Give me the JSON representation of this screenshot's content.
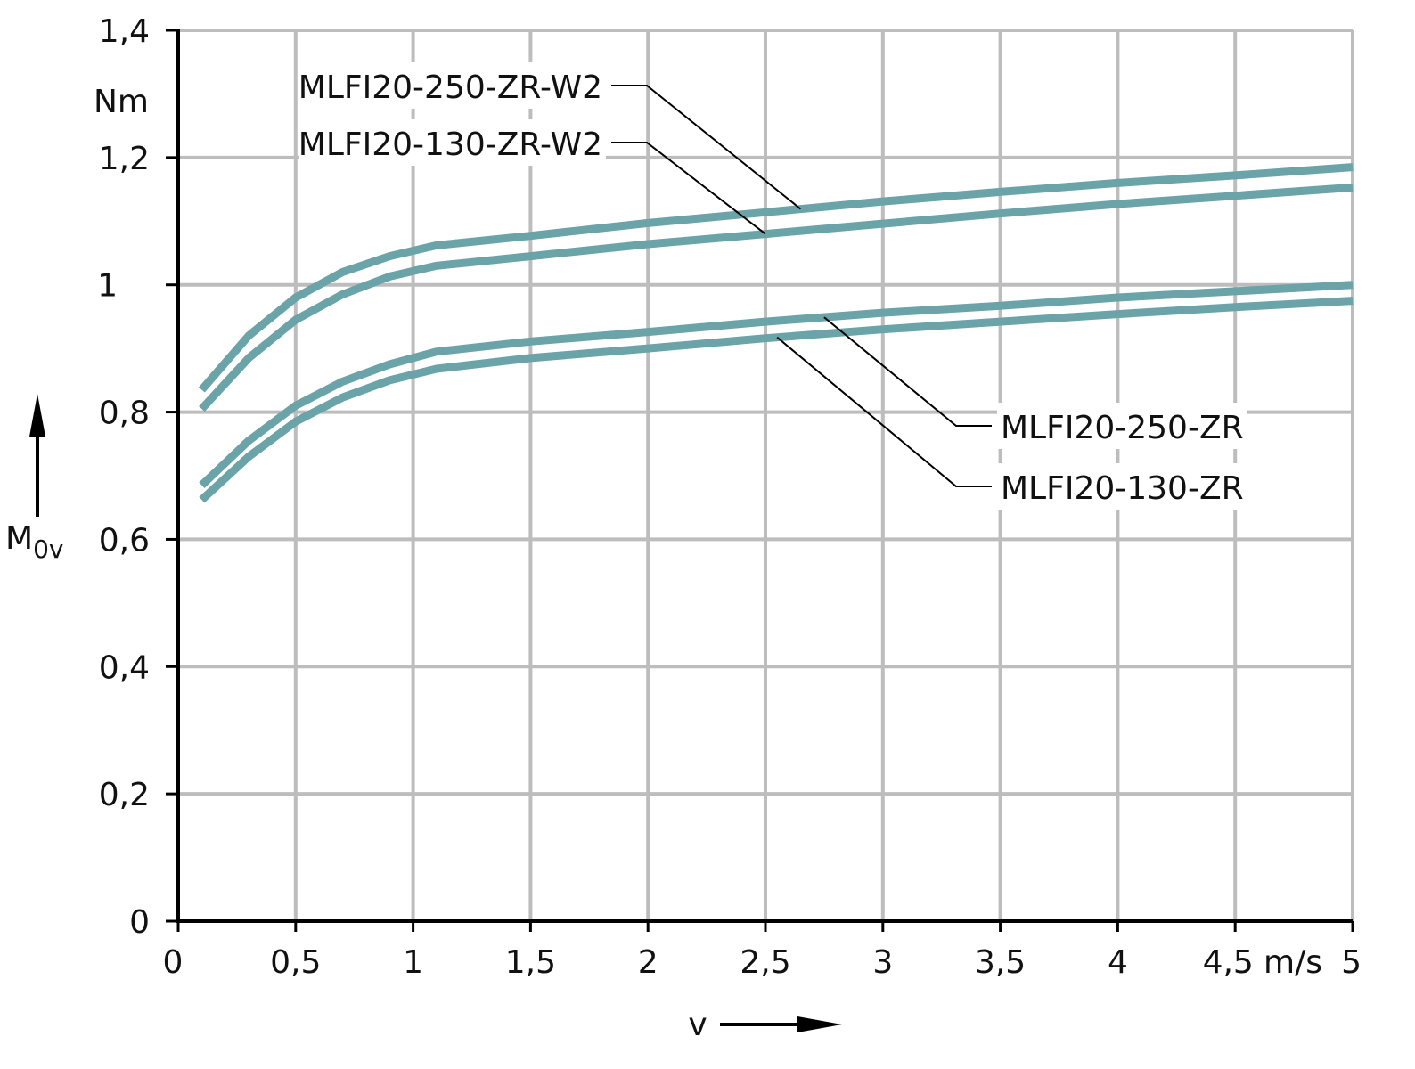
{
  "chart_data": {
    "type": "line",
    "x_axis": {
      "label": "v",
      "unit": "m/s",
      "range": [
        0,
        5
      ],
      "ticks": [
        {
          "value": 0,
          "label": "0"
        },
        {
          "value": 0.5,
          "label": "0,5"
        },
        {
          "value": 1,
          "label": "1"
        },
        {
          "value": 1.5,
          "label": "1,5"
        },
        {
          "value": 2,
          "label": "2"
        },
        {
          "value": 2.5,
          "label": "2,5"
        },
        {
          "value": 3,
          "label": "3"
        },
        {
          "value": 3.5,
          "label": "3,5"
        },
        {
          "value": 4,
          "label": "4"
        },
        {
          "value": 4.5,
          "label": "4,5"
        },
        {
          "value": 5,
          "label": "5"
        }
      ]
    },
    "y_axis": {
      "label_main": "M",
      "label_sub": "0v",
      "unit": "Nm",
      "range": [
        0,
        1.4
      ],
      "ticks": [
        {
          "value": 0,
          "label": "0"
        },
        {
          "value": 0.2,
          "label": "0,2"
        },
        {
          "value": 0.4,
          "label": "0,4"
        },
        {
          "value": 0.6,
          "label": "0,6"
        },
        {
          "value": 0.8,
          "label": "0,8"
        },
        {
          "value": 1.0,
          "label": "1"
        },
        {
          "value": 1.2,
          "label": "1,2"
        },
        {
          "value": 1.4,
          "label": "1,4"
        }
      ]
    },
    "grid": true,
    "line_color": "#6aa3a8",
    "series": [
      {
        "name": "MLFI20-250-ZR-W2",
        "points": [
          [
            0.1,
            0.835
          ],
          [
            0.3,
            0.92
          ],
          [
            0.5,
            0.98
          ],
          [
            0.7,
            1.02
          ],
          [
            0.9,
            1.045
          ],
          [
            1.1,
            1.062
          ],
          [
            1.5,
            1.077
          ],
          [
            2.0,
            1.097
          ],
          [
            2.5,
            1.114
          ],
          [
            3.0,
            1.131
          ],
          [
            3.5,
            1.146
          ],
          [
            4.0,
            1.16
          ],
          [
            4.5,
            1.172
          ],
          [
            5.0,
            1.185
          ]
        ]
      },
      {
        "name": "MLFI20-130-ZR-W2",
        "points": [
          [
            0.1,
            0.805
          ],
          [
            0.3,
            0.885
          ],
          [
            0.5,
            0.945
          ],
          [
            0.7,
            0.985
          ],
          [
            0.9,
            1.013
          ],
          [
            1.1,
            1.03
          ],
          [
            1.5,
            1.045
          ],
          [
            2.0,
            1.064
          ],
          [
            2.5,
            1.08
          ],
          [
            3.0,
            1.096
          ],
          [
            3.5,
            1.112
          ],
          [
            4.0,
            1.127
          ],
          [
            4.5,
            1.14
          ],
          [
            5.0,
            1.153
          ]
        ]
      },
      {
        "name": "MLFI20-250-ZR",
        "points": [
          [
            0.1,
            0.685
          ],
          [
            0.3,
            0.755
          ],
          [
            0.5,
            0.81
          ],
          [
            0.7,
            0.848
          ],
          [
            0.9,
            0.875
          ],
          [
            1.1,
            0.895
          ],
          [
            1.5,
            0.911
          ],
          [
            2.0,
            0.926
          ],
          [
            2.5,
            0.942
          ],
          [
            3.0,
            0.956
          ],
          [
            3.5,
            0.967
          ],
          [
            4.0,
            0.98
          ],
          [
            4.5,
            0.99
          ],
          [
            5.0,
            1.0
          ]
        ]
      },
      {
        "name": "MLFI20-130-ZR",
        "points": [
          [
            0.1,
            0.662
          ],
          [
            0.3,
            0.73
          ],
          [
            0.5,
            0.785
          ],
          [
            0.7,
            0.823
          ],
          [
            0.9,
            0.85
          ],
          [
            1.1,
            0.868
          ],
          [
            1.5,
            0.885
          ],
          [
            2.0,
            0.9
          ],
          [
            2.5,
            0.916
          ],
          [
            3.0,
            0.93
          ],
          [
            3.5,
            0.942
          ],
          [
            4.0,
            0.954
          ],
          [
            4.5,
            0.965
          ],
          [
            5.0,
            0.975
          ]
        ]
      }
    ]
  }
}
